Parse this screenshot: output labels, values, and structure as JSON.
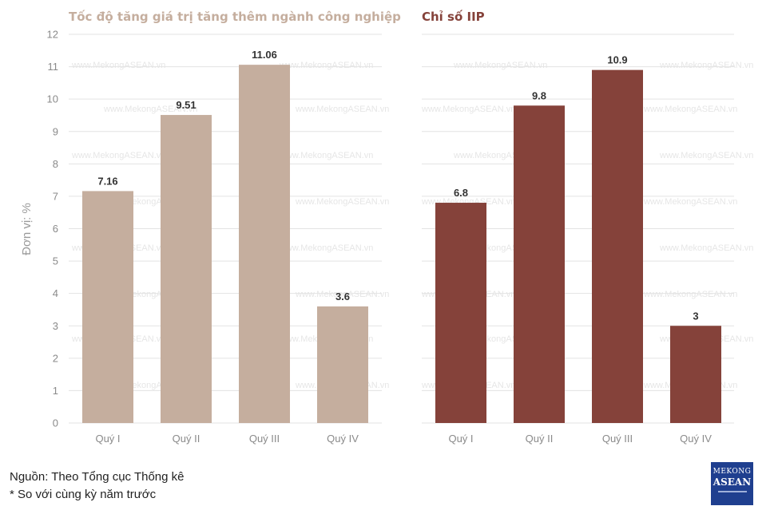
{
  "chart_data": [
    {
      "type": "bar",
      "title": "Tốc độ tăng giá trị tăng thêm ngành công nghiệp",
      "ylabel": "Đơn vị: %",
      "categories": [
        "Quý I",
        "Quý II",
        "Quý III",
        "Quý IV"
      ],
      "values": [
        7.16,
        9.51,
        11.06,
        3.6
      ],
      "value_labels": [
        "7.16",
        "9.51",
        "11.06",
        "3.6"
      ],
      "ylim": [
        0,
        12
      ],
      "yticks": [
        "0",
        "1",
        "2",
        "3",
        "4",
        "5",
        "6",
        "7",
        "8",
        "9",
        "10",
        "11",
        "12"
      ],
      "grid": true,
      "color": "#c5ae9e",
      "title_color": "#c5ae9e"
    },
    {
      "type": "bar",
      "title": "Chỉ số IIP",
      "categories": [
        "Quý I",
        "Quý II",
        "Quý III",
        "Quý IV"
      ],
      "values": [
        6.8,
        9.8,
        10.9,
        3
      ],
      "value_labels": [
        "6.8",
        "9.8",
        "10.9",
        "3"
      ],
      "ylim": [
        0,
        12
      ],
      "grid": true,
      "color": "#85423a",
      "title_color": "#85423a"
    }
  ],
  "footer": {
    "source": "Nguồn: Theo Tổng cục Thống kê",
    "note": "* So với cùng kỳ năm trước"
  },
  "logo": {
    "line1": "MEKONG",
    "line2": "ASEAN"
  },
  "watermark": "www.MekongASEAN.vn"
}
